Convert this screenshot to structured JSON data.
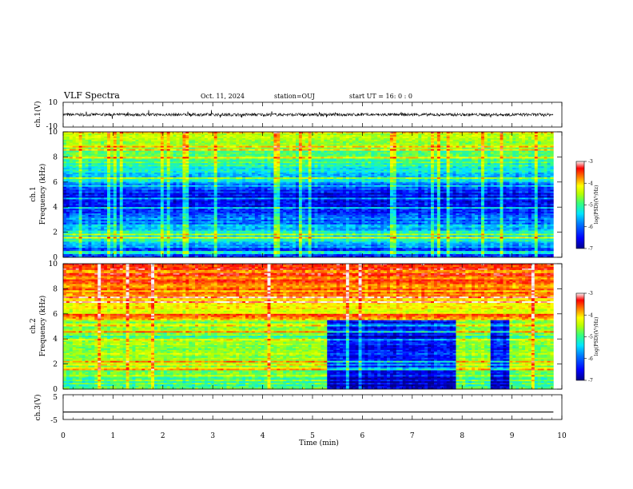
{
  "header": {
    "title": "VLF Spectra",
    "date": "Oct. 11, 2024",
    "station": "station=OUJ",
    "start": "start  UT =  16: 0  : 0"
  },
  "colors": {
    "colormap": [
      "#00008b",
      "#0000ff",
      "#0077ff",
      "#00e5ff",
      "#37ff7a",
      "#b8ff00",
      "#ffff00",
      "#ff8000",
      "#ff0000",
      "#f7f7f7"
    ]
  },
  "chart_data": [
    {
      "type": "line",
      "ylabel": "ch.1(V)",
      "ylim": [
        -10,
        10
      ],
      "yticks": [
        10,
        -10
      ],
      "x_range": [
        0,
        9.83
      ],
      "description_values": {
        "baseline": 0,
        "typical_amplitude": 1.2
      }
    },
    {
      "type": "heatmap",
      "ylabel": "Frequency (kHz)",
      "channel_label": "ch.1",
      "ylim": [
        0,
        10
      ],
      "yticks": [
        0,
        2,
        4,
        6,
        8,
        10
      ],
      "x_range": [
        0,
        9.83
      ],
      "colorbar": {
        "label": "log(PSD)(V²/Hz)",
        "min": -7,
        "max": -3,
        "ticks": [
          -3,
          -4,
          -5,
          -6,
          -7
        ]
      },
      "freq_profile_log_psd": [
        {
          "f": 0.5,
          "v": -6.6
        },
        {
          "f": 1.0,
          "v": -5.8
        },
        {
          "f": 1.5,
          "v": -5.6
        },
        {
          "f": 2.0,
          "v": -5.7
        },
        {
          "f": 2.5,
          "v": -5.9
        },
        {
          "f": 3.0,
          "v": -6.1
        },
        {
          "f": 3.5,
          "v": -6.4
        },
        {
          "f": 4.0,
          "v": -6.8
        },
        {
          "f": 5.0,
          "v": -6.5
        },
        {
          "f": 6.0,
          "v": -5.8
        },
        {
          "f": 7.0,
          "v": -5.4
        },
        {
          "f": 8.0,
          "v": -5.1
        },
        {
          "f": 9.0,
          "v": -4.9
        },
        {
          "f": 10.0,
          "v": -4.8
        }
      ]
    },
    {
      "type": "heatmap",
      "ylabel": "Frequency (kHz)",
      "channel_label": "ch.2",
      "ylim": [
        0,
        10
      ],
      "yticks": [
        0,
        2,
        4,
        6,
        8,
        10
      ],
      "x_range": [
        0,
        9.83
      ],
      "colorbar": {
        "label": "log(PSD)(V²/Hz)",
        "min": -7,
        "max": -3,
        "ticks": [
          -3,
          -4,
          -5,
          -6,
          -7
        ]
      },
      "quiet_intervals_min": [
        [
          5.3,
          7.9
        ],
        [
          8.55,
          8.95
        ]
      ],
      "freq_profile_log_psd": [
        {
          "f": 0.5,
          "v": -5.2
        },
        {
          "f": 1.0,
          "v": -5.0
        },
        {
          "f": 2.0,
          "v": -5.0
        },
        {
          "f": 3.0,
          "v": -4.9
        },
        {
          "f": 4.0,
          "v": -5.2
        },
        {
          "f": 5.0,
          "v": -5.0
        },
        {
          "f": 6.0,
          "v": -4.6
        },
        {
          "f": 7.0,
          "v": -4.2
        },
        {
          "f": 8.0,
          "v": -3.9
        },
        {
          "f": 9.0,
          "v": -3.7
        },
        {
          "f": 10.0,
          "v": -3.6
        }
      ]
    },
    {
      "type": "line",
      "ylabel": "ch.3(V)",
      "ylim": [
        -5,
        5
      ],
      "yticks": [
        5,
        -5
      ],
      "x_range": [
        0,
        9.83
      ],
      "series": [
        {
          "x": [
            0,
            9.83
          ],
          "values": [
            -2,
            -2
          ]
        }
      ]
    }
  ],
  "x_axis": {
    "label": "Time  (min)",
    "range": [
      0,
      10
    ],
    "ticks": [
      0,
      1,
      2,
      3,
      4,
      5,
      6,
      7,
      8,
      9,
      10
    ]
  }
}
